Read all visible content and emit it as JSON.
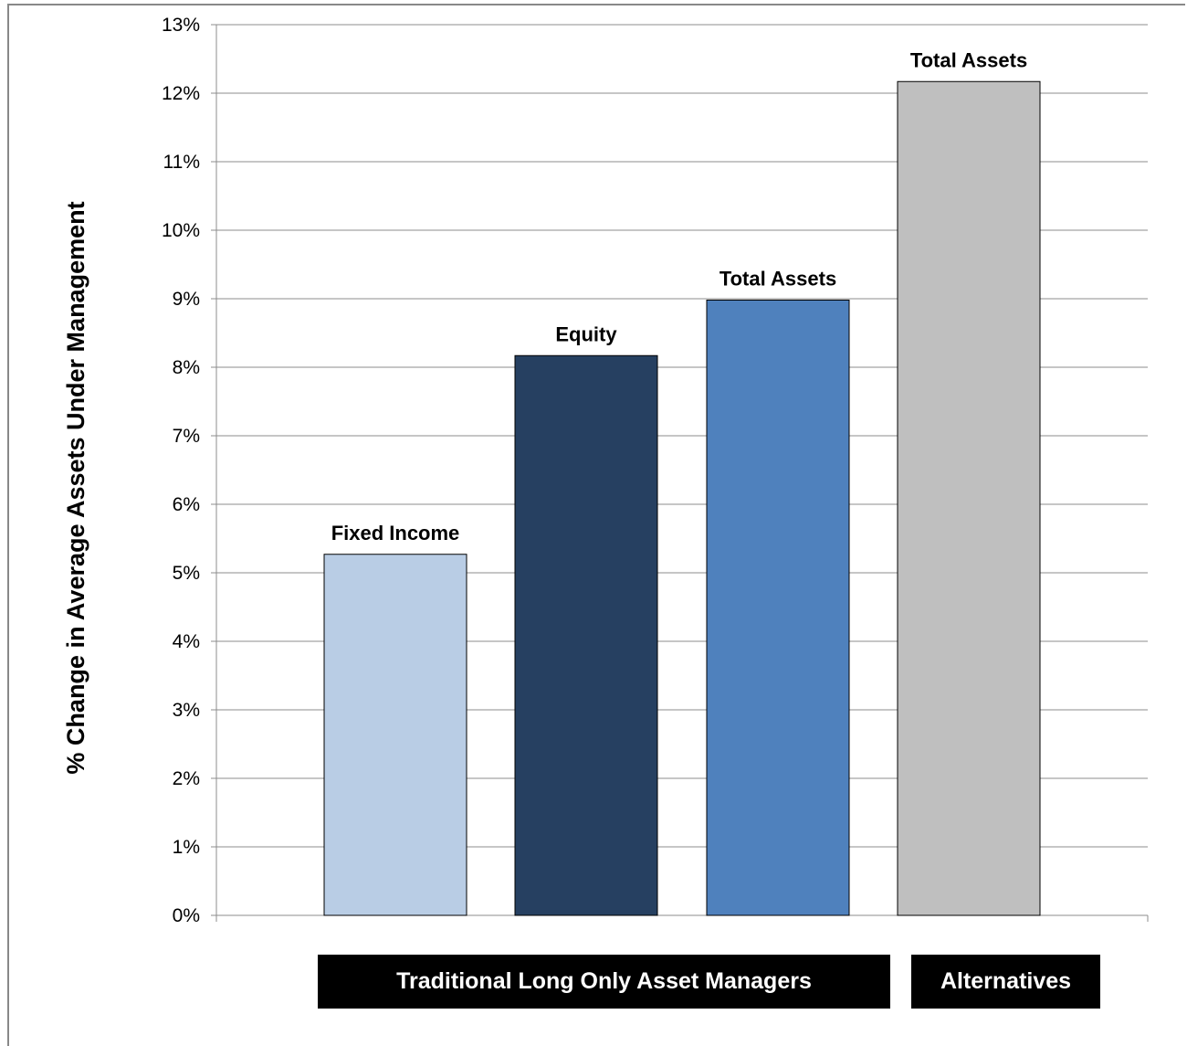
{
  "chart_data": {
    "type": "bar",
    "title": "",
    "xlabel": "",
    "ylabel": "% Change in Average Assets Under Management",
    "ylim": [
      0,
      13
    ],
    "yticks": [
      "0%",
      "1%",
      "2%",
      "3%",
      "4%",
      "5%",
      "6%",
      "7%",
      "8%",
      "9%",
      "10%",
      "11%",
      "12%",
      "13%"
    ],
    "grid": true,
    "legend": "none",
    "categories": [
      "Fixed Income",
      "Equity",
      "Total Assets",
      "Total Assets"
    ],
    "values": [
      5.27,
      8.17,
      8.98,
      12.17
    ],
    "colors": [
      "#b9cde5",
      "#264061",
      "#4f81bd",
      "#bfbfbf"
    ],
    "groups": [
      {
        "label": "Traditional Long Only Asset Managers",
        "categories": [
          0,
          1,
          2
        ]
      },
      {
        "label": "Alternatives",
        "categories": [
          3
        ]
      }
    ]
  }
}
